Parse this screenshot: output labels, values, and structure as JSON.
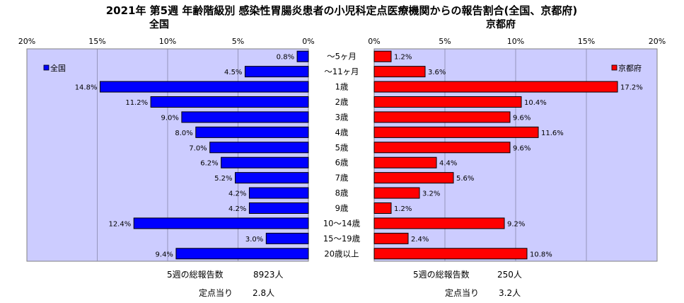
{
  "title": "2021年 第5週 年齢階級別 感染性胃腸炎患者の小児科定点医療機関からの報告割合(全国、京都府)",
  "categories": [
    "～5ヶ月",
    "～11ヶ月",
    "1歳",
    "2歳",
    "3歳",
    "4歳",
    "5歳",
    "6歳",
    "7歳",
    "8歳",
    "9歳",
    "10～14歳",
    "15～19歳",
    "20歳以上"
  ],
  "colors": {
    "national": "#0000ff",
    "kyoto": "#ff0000",
    "plot_bg": "#ccccff",
    "grid": "#8888aa"
  },
  "chart_data": [
    {
      "type": "bar",
      "orientation": "horizontal",
      "direction": "right-to-left",
      "title": "全国",
      "categories": [
        "～5ヶ月",
        "～11ヶ月",
        "1歳",
        "2歳",
        "3歳",
        "4歳",
        "5歳",
        "6歳",
        "7歳",
        "8歳",
        "9歳",
        "10～14歳",
        "15～19歳",
        "20歳以上"
      ],
      "series": [
        {
          "name": "全国",
          "values": [
            0.8,
            4.5,
            14.8,
            11.2,
            9.0,
            8.0,
            7.0,
            6.2,
            5.2,
            4.2,
            4.2,
            12.4,
            3.0,
            9.4
          ],
          "labels": [
            "0.8%",
            "4.5%",
            "14.8%",
            "11.2%",
            "9.0%",
            "8.0%",
            "7.0%",
            "6.2%",
            "5.2%",
            "4.2%",
            "4.2%",
            "12.4%",
            "3.0%",
            "9.4%"
          ]
        }
      ],
      "xlim": [
        0,
        20
      ],
      "ticks": [
        "0%",
        "5%",
        "10%",
        "15%",
        "20%"
      ],
      "grid": true,
      "legend": "top-left"
    },
    {
      "type": "bar",
      "orientation": "horizontal",
      "direction": "left-to-right",
      "title": "京都府",
      "categories": [
        "～5ヶ月",
        "～11ヶ月",
        "1歳",
        "2歳",
        "3歳",
        "4歳",
        "5歳",
        "6歳",
        "7歳",
        "8歳",
        "9歳",
        "10～14歳",
        "15～19歳",
        "20歳以上"
      ],
      "series": [
        {
          "name": "京都府",
          "values": [
            1.2,
            3.6,
            17.2,
            10.4,
            9.6,
            11.6,
            9.6,
            4.4,
            5.6,
            3.2,
            1.2,
            9.2,
            2.4,
            10.8
          ],
          "labels": [
            "1.2%",
            "3.6%",
            "17.2%",
            "10.4%",
            "9.6%",
            "11.6%",
            "9.6%",
            "4.4%",
            "5.6%",
            "3.2%",
            "1.2%",
            "9.2%",
            "2.4%",
            "10.8%"
          ]
        }
      ],
      "xlim": [
        0,
        20
      ],
      "ticks": [
        "0%",
        "5%",
        "10%",
        "15%",
        "20%"
      ],
      "grid": true,
      "legend": "top-right"
    }
  ],
  "footer": {
    "national_total_label": "5週の総報告数",
    "national_total_value": "8923人",
    "national_per_label": "定点当り",
    "national_per_value": "2.8人",
    "kyoto_total_label": "5週の総報告数",
    "kyoto_total_value": "250人",
    "kyoto_per_label": "定点当り",
    "kyoto_per_value": "3.2人"
  }
}
